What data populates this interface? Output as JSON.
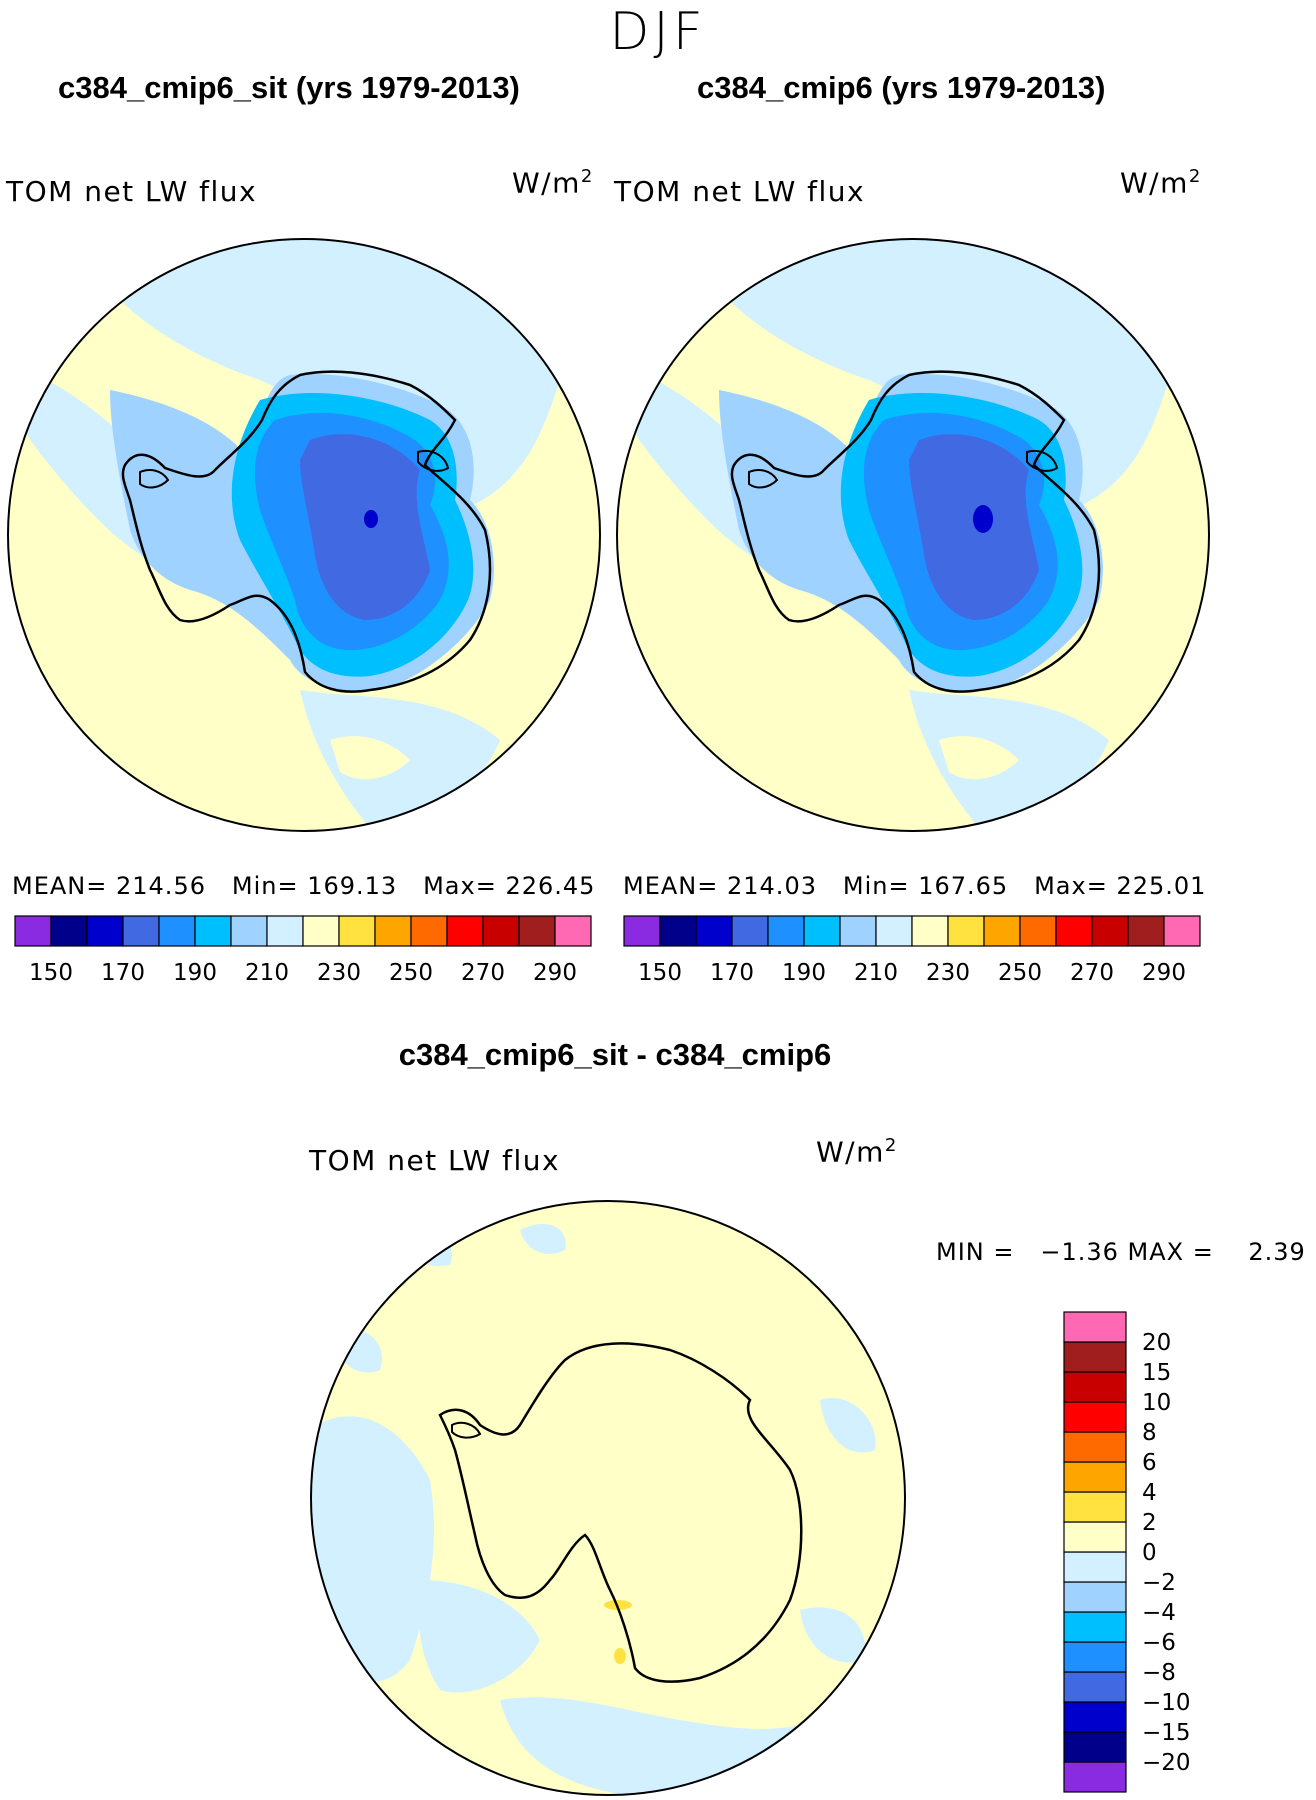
{
  "figure": {
    "season": "DJF",
    "panels": [
      {
        "title": "c384_cmip6_sit (yrs 1979-2013)",
        "variable": "TOM net LW flux",
        "units_base": "W/m",
        "units_exp": "2",
        "stats": {
          "mean_label": "MEAN=",
          "mean": "214.56",
          "min_label": "Min=",
          "min": "169.13",
          "max_label": "Max=",
          "max": "226.45"
        }
      },
      {
        "title": "c384_cmip6 (yrs 1979-2013)",
        "variable": "TOM net LW flux",
        "units_base": "W/m",
        "units_exp": "2",
        "stats": {
          "mean_label": "MEAN=",
          "mean": "214.03",
          "min_label": "Min=",
          "min": "167.65",
          "max_label": "Max=",
          "max": "225.01"
        }
      }
    ],
    "diff": {
      "title": "c384_cmip6_sit - c384_cmip6",
      "variable": "TOM net LW flux",
      "units_base": "W/m",
      "units_exp": "2",
      "minmax": "MIN =   −1.36 MAX =    2.39"
    }
  },
  "chart_data": [
    {
      "type": "heatmap",
      "projection": "south-polar-stereographic",
      "title": "c384_cmip6_sit (yrs 1979-2013)",
      "variable": "TOM net LW flux",
      "units": "W/m2",
      "mean": 214.56,
      "min": 169.13,
      "max": 226.45,
      "colorbar": {
        "levels": [
          150,
          160,
          170,
          180,
          190,
          200,
          210,
          220,
          230,
          240,
          250,
          260,
          270,
          280,
          290
        ],
        "tick_labels": [
          "150",
          "170",
          "190",
          "210",
          "230",
          "250",
          "270",
          "290"
        ],
        "colors": [
          "#8a2be2",
          "#00008b",
          "#0000cd",
          "#4169e1",
          "#1e90ff",
          "#00bfff",
          "#a0d2ff",
          "#d2f0ff",
          "#ffffc8",
          "#ffe140",
          "#ffa500",
          "#ff6a00",
          "#ff0000",
          "#c80000",
          "#a01e1e",
          "#ff69b4"
        ]
      }
    },
    {
      "type": "heatmap",
      "projection": "south-polar-stereographic",
      "title": "c384_cmip6 (yrs 1979-2013)",
      "variable": "TOM net LW flux",
      "units": "W/m2",
      "mean": 214.03,
      "min": 167.65,
      "max": 225.01,
      "colorbar": {
        "levels": [
          150,
          160,
          170,
          180,
          190,
          200,
          210,
          220,
          230,
          240,
          250,
          260,
          270,
          280,
          290
        ],
        "tick_labels": [
          "150",
          "170",
          "190",
          "210",
          "230",
          "250",
          "270",
          "290"
        ],
        "colors": [
          "#8a2be2",
          "#00008b",
          "#0000cd",
          "#4169e1",
          "#1e90ff",
          "#00bfff",
          "#a0d2ff",
          "#d2f0ff",
          "#ffffc8",
          "#ffe140",
          "#ffa500",
          "#ff6a00",
          "#ff0000",
          "#c80000",
          "#a01e1e",
          "#ff69b4"
        ]
      }
    },
    {
      "type": "heatmap",
      "projection": "south-polar-stereographic",
      "title": "c384_cmip6_sit - c384_cmip6",
      "variable": "TOM net LW flux",
      "units": "W/m2",
      "min": -1.36,
      "max": 2.39,
      "colorbar": {
        "orientation": "vertical",
        "levels": [
          -20,
          -15,
          -10,
          -8,
          -6,
          -4,
          -2,
          0,
          2,
          4,
          6,
          8,
          10,
          15,
          20
        ],
        "tick_labels": [
          "−20",
          "−15",
          "−10",
          "−8",
          "−6",
          "−4",
          "−2",
          "0",
          "2",
          "4",
          "6",
          "8",
          "10",
          "15",
          "20"
        ],
        "colors": [
          "#8a2be2",
          "#00008b",
          "#0000cd",
          "#4169e1",
          "#1e90ff",
          "#00bfff",
          "#a0d2ff",
          "#d2f0ff",
          "#ffffc8",
          "#ffe140",
          "#ffa500",
          "#ff6a00",
          "#ff0000",
          "#c80000",
          "#a01e1e",
          "#ff69b4"
        ]
      }
    }
  ]
}
